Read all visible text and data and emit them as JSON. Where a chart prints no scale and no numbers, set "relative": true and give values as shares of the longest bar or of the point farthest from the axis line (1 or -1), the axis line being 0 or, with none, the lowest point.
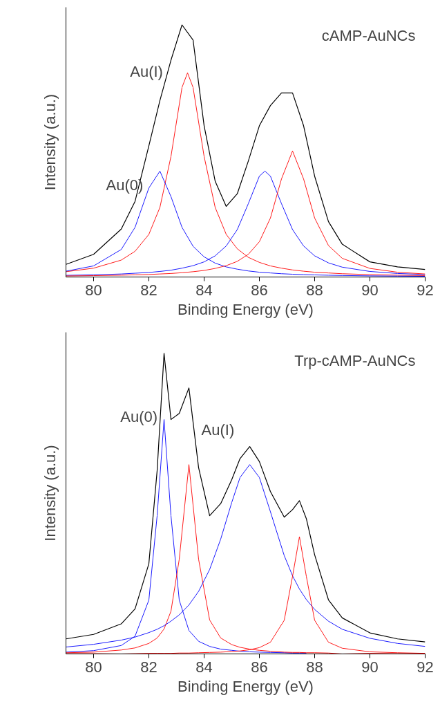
{
  "chart_data": [
    {
      "type": "line",
      "relative": true,
      "xlabel": "Binding Energy (eV)",
      "ylabel": "Intensity (a.u.)",
      "xlim": [
        79,
        92
      ],
      "xticks": [
        80,
        82,
        84,
        86,
        88,
        90,
        92
      ],
      "grid": false,
      "annotations": [
        "cAMP-AuNCs",
        "Au(I)",
        "Au(0)"
      ],
      "x": [
        79,
        80,
        81,
        81.5,
        82,
        82.4,
        82.8,
        83.2,
        83.6,
        84,
        84.4,
        84.8,
        85.2,
        85.6,
        86,
        86.4,
        86.8,
        87.2,
        87.6,
        88,
        88.5,
        89,
        90,
        91,
        92
      ],
      "series": [
        {
          "color": "#000000",
          "values": [
            0.05,
            0.09,
            0.19,
            0.3,
            0.52,
            0.7,
            0.86,
            1.0,
            0.94,
            0.6,
            0.38,
            0.28,
            0.33,
            0.46,
            0.6,
            0.68,
            0.73,
            0.73,
            0.6,
            0.4,
            0.22,
            0.13,
            0.06,
            0.04,
            0.03
          ]
        },
        {
          "color": "#ff0000",
          "x": [
            79,
            80,
            81,
            81.5,
            82,
            82.4,
            82.8,
            83.2,
            83.4,
            83.6,
            84,
            84.4,
            84.8,
            85.2,
            85.6,
            86,
            86.4,
            86.8,
            87.2,
            87.6,
            88,
            88.5,
            89,
            90,
            91,
            92
          ],
          "values": [
            0.021,
            0.035,
            0.067,
            0.102,
            0.169,
            0.276,
            0.478,
            0.752,
            0.81,
            0.752,
            0.478,
            0.276,
            0.169,
            0.112,
            0.078,
            0.058,
            0.044,
            0.035,
            0.028,
            0.023,
            0.019,
            0.016,
            0.013,
            0.0095,
            0.0072,
            0.0056
          ]
        },
        {
          "color": "#0000ff",
          "values": [
            0.023,
            0.044,
            0.109,
            0.197,
            0.353,
            0.42,
            0.319,
            0.197,
            0.122,
            0.08,
            0.055,
            0.04,
            0.031,
            0.024,
            0.019,
            0.016,
            0.013,
            0.011,
            0.0095,
            0.0083,
            0.007,
            0.006,
            0.0045,
            0.0036,
            0.0029
          ]
        },
        {
          "color": "#0000ff",
          "x": [
            79,
            80,
            81,
            81.5,
            82,
            82.4,
            82.8,
            83.2,
            83.6,
            84,
            84.4,
            84.8,
            85.2,
            85.6,
            86,
            86.2,
            86.4,
            86.8,
            87.2,
            87.6,
            88,
            88.5,
            89,
            90,
            91,
            92
          ],
          "values": [
            0.0065,
            0.0087,
            0.012,
            0.015,
            0.018,
            0.022,
            0.027,
            0.035,
            0.045,
            0.06,
            0.084,
            0.123,
            0.188,
            0.291,
            0.4,
            0.42,
            0.4,
            0.291,
            0.188,
            0.123,
            0.084,
            0.056,
            0.039,
            0.022,
            0.014,
            0.0099
          ]
        },
        {
          "color": "#ff0000",
          "values": [
            0.0041,
            0.0054,
            0.0072,
            0.0085,
            0.01,
            0.012,
            0.014,
            0.017,
            0.021,
            0.026,
            0.034,
            0.045,
            0.062,
            0.09,
            0.14,
            0.234,
            0.389,
            0.5,
            0.389,
            0.234,
            0.125,
            0.074,
            0.034,
            0.019,
            0.012
          ]
        }
      ]
    },
    {
      "type": "line",
      "relative": true,
      "xlabel": "Binding Energy (eV)",
      "ylabel": "Intensity (a.u.)",
      "xlim": [
        79,
        92
      ],
      "xticks": [
        80,
        82,
        84,
        86,
        88,
        90,
        92
      ],
      "grid": false,
      "annotations": [
        "Trp-cAMP-AuNCs",
        "Au(0)",
        "Au(I)"
      ],
      "x": [
        79,
        80,
        81,
        81.5,
        82,
        82.3,
        82.55,
        82.8,
        83.1,
        83.45,
        83.8,
        84.2,
        84.6,
        85,
        85.3,
        85.65,
        86,
        86.4,
        86.9,
        87.2,
        87.45,
        87.7,
        88,
        88.5,
        89,
        90,
        91,
        92
      ],
      "series": [
        {
          "color": "#000000",
          "values": [
            0.05,
            0.065,
            0.1,
            0.15,
            0.3,
            0.61,
            1.0,
            0.78,
            0.8,
            0.885,
            0.62,
            0.46,
            0.5,
            0.58,
            0.65,
            0.69,
            0.64,
            0.54,
            0.455,
            0.48,
            0.51,
            0.45,
            0.33,
            0.18,
            0.12,
            0.07,
            0.05,
            0.04
          ]
        },
        {
          "color": "#0000ff",
          "x": [
            79,
            80,
            81,
            81.5,
            82,
            82.3,
            82.55,
            82.8,
            83.1,
            83.45,
            83.8,
            84.2,
            84.6,
            85,
            85.3,
            85.65,
            86,
            86.4,
            86.9,
            87.2,
            87.45,
            87.7
          ],
          "values": [
            0.006,
            0.011,
            0.028,
            0.059,
            0.179,
            0.46,
            0.78,
            0.46,
            0.179,
            0.078,
            0.042,
            0.025,
            0.016,
            0.012,
            0.009,
            0.007,
            0.006,
            0.005,
            0.004,
            0.003,
            0.003,
            0.003
          ]
        },
        {
          "color": "#ff0000",
          "values": [
            0.004,
            0.006,
            0.013,
            0.02,
            0.035,
            0.053,
            0.083,
            0.142,
            0.315,
            0.63,
            0.315,
            0.113,
            0.053,
            0.031,
            0.022,
            0.016,
            0.012,
            0.009,
            0.006,
            0.005,
            0.005,
            0.004,
            0.004,
            0.003,
            null,
            0.002,
            0.001,
            0.001
          ]
        },
        {
          "color": "#0000ff",
          "values": [
            0.023,
            0.032,
            0.046,
            0.056,
            0.071,
            0.082,
            0.094,
            0.109,
            0.13,
            0.163,
            0.208,
            0.281,
            0.382,
            0.504,
            0.587,
            0.63,
            0.587,
            0.473,
            0.327,
            0.26,
            0.216,
            0.181,
            0.148,
            0.109,
            0.082,
            0.052,
            0.035,
            0.025
          ]
        },
        {
          "color": "#ff0000",
          "values": [
            0.001,
            0.001,
            null,
            0.001,
            0.002,
            0.002,
            0.002,
            0.002,
            0.003,
            0.003,
            0.004,
            0.005,
            0.006,
            0.008,
            0.01,
            0.014,
            0.021,
            0.039,
            0.112,
            0.258,
            0.39,
            0.258,
            0.112,
            0.039,
            0.019,
            0.007,
            0.004,
            0.002
          ]
        }
      ]
    }
  ]
}
